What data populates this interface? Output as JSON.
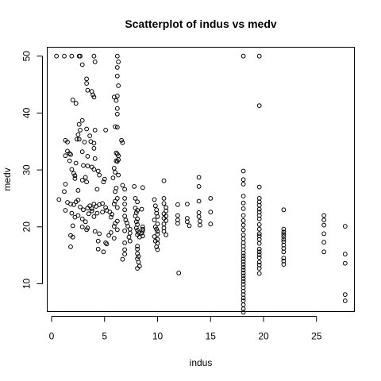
{
  "chart_data": {
    "type": "scatter",
    "title": "Scatterplot of indus vs medv",
    "xlabel": "indus",
    "ylabel": "medv",
    "xlim": [
      0,
      28
    ],
    "ylim": [
      5,
      50
    ],
    "xticks": [
      0,
      5,
      10,
      15,
      20,
      25
    ],
    "yticks": [
      10,
      20,
      30,
      40,
      50
    ],
    "grid": false,
    "marker": "open-circle",
    "points": [
      [
        0.46,
        50.0
      ],
      [
        1.2,
        50.0
      ],
      [
        1.9,
        50.0
      ],
      [
        2.6,
        50.0
      ],
      [
        2.7,
        50.0
      ],
      [
        4.0,
        50.0
      ],
      [
        4.1,
        49.0
      ],
      [
        6.2,
        50.0
      ],
      [
        6.3,
        49.0
      ],
      [
        6.2,
        48.0
      ],
      [
        6.2,
        46.5
      ],
      [
        6.3,
        44.8
      ],
      [
        6.2,
        43.0
      ],
      [
        5.9,
        42.8
      ],
      [
        6.1,
        42.2
      ],
      [
        6.2,
        40.8
      ],
      [
        6.2,
        39.8
      ],
      [
        6.0,
        37.6
      ],
      [
        6.2,
        37.5
      ],
      [
        6.6,
        35.2
      ],
      [
        6.7,
        34.8
      ],
      [
        6.1,
        33.0
      ],
      [
        6.2,
        32.8
      ],
      [
        6.3,
        32.5
      ],
      [
        6.3,
        31.8
      ],
      [
        6.2,
        31.5
      ],
      [
        6.1,
        31.6
      ],
      [
        5.9,
        30.3
      ],
      [
        6.0,
        29.6
      ],
      [
        6.3,
        29.1
      ],
      [
        5.8,
        28.6
      ],
      [
        6.7,
        27.3
      ],
      [
        6.1,
        26.8
      ],
      [
        6.0,
        26.2
      ],
      [
        6.2,
        25.0
      ],
      [
        6.0,
        24.5
      ],
      [
        5.9,
        24.0
      ],
      [
        6.2,
        23.4
      ],
      [
        5.5,
        22.6
      ],
      [
        5.7,
        22.2
      ],
      [
        5.6,
        21.7
      ],
      [
        6.2,
        21.0
      ],
      [
        6.0,
        20.6
      ],
      [
        5.9,
        20.1
      ],
      [
        6.2,
        19.5
      ],
      [
        5.6,
        19.0
      ],
      [
        5.4,
        18.5
      ],
      [
        5.9,
        18.0
      ],
      [
        2.9,
        48.5
      ],
      [
        3.3,
        46.0
      ],
      [
        3.3,
        45.2
      ],
      [
        3.4,
        44.0
      ],
      [
        3.8,
        43.8
      ],
      [
        3.9,
        43.2
      ],
      [
        4.0,
        42.8
      ],
      [
        2.0,
        42.3
      ],
      [
        2.3,
        41.7
      ],
      [
        2.9,
        38.7
      ],
      [
        2.6,
        38.0
      ],
      [
        2.7,
        37.0
      ],
      [
        3.3,
        37.2
      ],
      [
        5.1,
        37.0
      ],
      [
        4.1,
        37.0
      ],
      [
        2.5,
        36.2
      ],
      [
        3.6,
        36.0
      ],
      [
        2.4,
        35.4
      ],
      [
        1.3,
        35.2
      ],
      [
        1.5,
        34.9
      ],
      [
        2.6,
        35.4
      ],
      [
        3.7,
        35.0
      ],
      [
        4.0,
        34.7
      ],
      [
        3.1,
        34.9
      ],
      [
        4.0,
        33.8
      ],
      [
        1.5,
        33.3
      ],
      [
        1.7,
        32.9
      ],
      [
        1.8,
        32.7
      ],
      [
        1.3,
        32.5
      ],
      [
        2.9,
        33.2
      ],
      [
        3.4,
        32.4
      ],
      [
        4.1,
        32.0
      ],
      [
        1.7,
        31.6
      ],
      [
        2.3,
        31.2
      ],
      [
        3.0,
        30.8
      ],
      [
        3.4,
        30.7
      ],
      [
        3.8,
        30.5
      ],
      [
        4.0,
        30.1
      ],
      [
        4.4,
        29.8
      ],
      [
        4.5,
        29.1
      ],
      [
        1.9,
        30.1
      ],
      [
        2.1,
        29.4
      ],
      [
        2.2,
        29.0
      ],
      [
        2.2,
        28.5
      ],
      [
        2.9,
        28.2
      ],
      [
        3.3,
        27.9
      ],
      [
        4.9,
        27.9
      ],
      [
        5.0,
        28.4
      ],
      [
        1.3,
        27.5
      ],
      [
        3.2,
        28.7
      ],
      [
        4.3,
        26.6
      ],
      [
        2.5,
        26.4
      ],
      [
        1.2,
        26.2
      ],
      [
        0.7,
        24.8
      ],
      [
        1.5,
        24.3
      ],
      [
        1.8,
        24.0
      ],
      [
        2.1,
        23.9
      ],
      [
        2.3,
        24.4
      ],
      [
        2.5,
        24.7
      ],
      [
        2.7,
        23.5
      ],
      [
        3.0,
        23.0
      ],
      [
        3.4,
        23.3
      ],
      [
        3.6,
        23.7
      ],
      [
        3.8,
        23.2
      ],
      [
        4.0,
        24.0
      ],
      [
        4.2,
        23.6
      ],
      [
        4.5,
        23.9
      ],
      [
        4.8,
        24.1
      ],
      [
        5.1,
        23.4
      ],
      [
        5.2,
        22.9
      ],
      [
        1.9,
        22.4
      ],
      [
        2.2,
        21.7
      ],
      [
        2.5,
        22.0
      ],
      [
        2.9,
        21.4
      ],
      [
        3.2,
        20.9
      ],
      [
        3.5,
        22.3
      ],
      [
        3.8,
        22.8
      ],
      [
        4.0,
        21.8
      ],
      [
        4.3,
        22.4
      ],
      [
        4.8,
        22.6
      ],
      [
        1.3,
        22.9
      ],
      [
        2.0,
        20.2
      ],
      [
        2.9,
        20.0
      ],
      [
        3.3,
        19.5
      ],
      [
        3.4,
        19.8
      ],
      [
        4.1,
        19.2
      ],
      [
        4.5,
        18.8
      ],
      [
        1.8,
        18.5
      ],
      [
        2.0,
        18.2
      ],
      [
        4.4,
        17.5
      ],
      [
        5.1,
        17.2
      ],
      [
        5.2,
        17.0
      ],
      [
        1.8,
        16.5
      ],
      [
        4.4,
        16.1
      ],
      [
        4.9,
        15.6
      ],
      [
        6.9,
        26.6
      ],
      [
        6.9,
        25.0
      ],
      [
        6.9,
        24.0
      ],
      [
        6.9,
        23.0
      ],
      [
        6.9,
        21.9
      ],
      [
        7.0,
        21.2
      ],
      [
        7.1,
        20.7
      ],
      [
        7.2,
        20.1
      ],
      [
        7.4,
        19.6
      ],
      [
        7.4,
        18.9
      ],
      [
        6.9,
        19.3
      ],
      [
        7.3,
        18.2
      ],
      [
        7.4,
        17.5
      ],
      [
        6.9,
        17.2
      ],
      [
        6.9,
        16.0
      ],
      [
        6.9,
        15.2
      ],
      [
        6.7,
        14.3
      ],
      [
        7.8,
        27.1
      ],
      [
        7.9,
        25.0
      ],
      [
        8.1,
        24.4
      ],
      [
        7.9,
        23.3
      ],
      [
        8.1,
        22.9
      ],
      [
        8.0,
        22.5
      ],
      [
        7.9,
        21.9
      ],
      [
        8.1,
        21.4
      ],
      [
        8.0,
        20.9
      ],
      [
        8.1,
        20.4
      ],
      [
        8.0,
        19.8
      ],
      [
        8.1,
        19.4
      ],
      [
        8.2,
        19.0
      ],
      [
        8.1,
        18.6
      ],
      [
        8.3,
        18.2
      ],
      [
        8.6,
        20.0
      ],
      [
        8.6,
        19.6
      ],
      [
        8.6,
        19.3
      ],
      [
        8.5,
        18.9
      ],
      [
        8.6,
        18.4
      ],
      [
        8.5,
        23.1
      ],
      [
        8.6,
        26.9
      ],
      [
        8.1,
        16.6
      ],
      [
        8.1,
        16.1
      ],
      [
        8.1,
        15.3
      ],
      [
        8.2,
        14.8
      ],
      [
        8.1,
        14.4
      ],
      [
        8.2,
        13.8
      ],
      [
        8.3,
        13.1
      ],
      [
        8.1,
        12.7
      ],
      [
        9.7,
        24.8
      ],
      [
        9.8,
        23.7
      ],
      [
        9.9,
        23.0
      ],
      [
        9.9,
        22.4
      ],
      [
        10.0,
        21.8
      ],
      [
        9.7,
        21.2
      ],
      [
        10.0,
        20.5
      ],
      [
        9.8,
        20.0
      ],
      [
        9.9,
        19.6
      ],
      [
        10.0,
        19.2
      ],
      [
        10.0,
        18.7
      ],
      [
        9.7,
        18.3
      ],
      [
        10.0,
        17.8
      ],
      [
        9.8,
        17.5
      ],
      [
        10.0,
        17.1
      ],
      [
        9.9,
        16.5
      ],
      [
        10.0,
        16.0
      ],
      [
        10.6,
        28.1
      ],
      [
        10.6,
        25.0
      ],
      [
        10.6,
        24.1
      ],
      [
        10.8,
        23.4
      ],
      [
        10.8,
        22.8
      ],
      [
        10.6,
        22.3
      ],
      [
        10.8,
        21.9
      ],
      [
        10.6,
        21.5
      ],
      [
        10.8,
        21.1
      ],
      [
        10.6,
        20.5
      ],
      [
        10.6,
        19.8
      ],
      [
        10.6,
        19.2
      ],
      [
        10.8,
        18.6
      ],
      [
        11.9,
        23.9
      ],
      [
        11.9,
        22.0
      ],
      [
        11.9,
        21.2
      ],
      [
        11.9,
        20.6
      ],
      [
        12.0,
        11.9
      ],
      [
        12.8,
        24.0
      ],
      [
        12.8,
        21.5
      ],
      [
        12.8,
        20.9
      ],
      [
        13.0,
        20.2
      ],
      [
        13.9,
        28.7
      ],
      [
        13.9,
        27.1
      ],
      [
        13.9,
        24.5
      ],
      [
        13.9,
        22.5
      ],
      [
        13.9,
        21.8
      ],
      [
        14.0,
        21.0
      ],
      [
        14.0,
        20.3
      ],
      [
        15.0,
        25.0
      ],
      [
        15.0,
        22.6
      ],
      [
        15.0,
        20.5
      ],
      [
        18.1,
        50.0
      ],
      [
        18.1,
        29.8
      ],
      [
        18.1,
        28.3
      ],
      [
        18.1,
        27.5
      ],
      [
        18.1,
        25.4
      ],
      [
        18.1,
        24.2
      ],
      [
        18.1,
        23.2
      ],
      [
        18.1,
        22.0
      ],
      [
        18.1,
        21.1
      ],
      [
        18.1,
        20.3
      ],
      [
        18.1,
        19.5
      ],
      [
        18.1,
        18.6
      ],
      [
        18.1,
        17.9
      ],
      [
        18.1,
        17.2
      ],
      [
        18.1,
        16.6
      ],
      [
        18.1,
        16.0
      ],
      [
        18.1,
        15.4
      ],
      [
        18.1,
        14.9
      ],
      [
        18.1,
        14.4
      ],
      [
        18.1,
        13.9
      ],
      [
        18.1,
        13.4
      ],
      [
        18.1,
        12.9
      ],
      [
        18.1,
        12.4
      ],
      [
        18.1,
        11.9
      ],
      [
        18.1,
        11.4
      ],
      [
        18.1,
        10.9
      ],
      [
        18.1,
        10.4
      ],
      [
        18.1,
        9.9
      ],
      [
        18.1,
        9.3
      ],
      [
        18.1,
        8.7
      ],
      [
        18.1,
        8.1
      ],
      [
        18.1,
        7.5
      ],
      [
        18.1,
        7.0
      ],
      [
        18.1,
        6.3
      ],
      [
        18.1,
        5.6
      ],
      [
        18.1,
        5.0
      ],
      [
        19.6,
        50.0
      ],
      [
        19.6,
        41.3
      ],
      [
        19.6,
        27.0
      ],
      [
        19.6,
        25.0
      ],
      [
        19.6,
        24.4
      ],
      [
        19.6,
        23.8
      ],
      [
        19.6,
        23.1
      ],
      [
        19.6,
        22.6
      ],
      [
        19.6,
        22.0
      ],
      [
        19.6,
        21.4
      ],
      [
        19.6,
        20.4
      ],
      [
        19.6,
        19.6
      ],
      [
        19.6,
        18.8
      ],
      [
        19.6,
        18.4
      ],
      [
        19.6,
        17.8
      ],
      [
        19.6,
        17.1
      ],
      [
        19.6,
        16.1
      ],
      [
        19.6,
        15.6
      ],
      [
        19.6,
        15.1
      ],
      [
        19.6,
        14.6
      ],
      [
        19.6,
        13.8
      ],
      [
        19.6,
        13.3
      ],
      [
        19.6,
        12.7
      ],
      [
        19.6,
        11.8
      ],
      [
        21.9,
        23.0
      ],
      [
        21.9,
        19.6
      ],
      [
        21.9,
        19.1
      ],
      [
        21.9,
        18.7
      ],
      [
        21.9,
        18.3
      ],
      [
        21.9,
        17.8
      ],
      [
        21.9,
        17.4
      ],
      [
        21.9,
        16.8
      ],
      [
        21.9,
        16.2
      ],
      [
        21.9,
        15.6
      ],
      [
        21.9,
        14.5
      ],
      [
        21.9,
        14.0
      ],
      [
        21.9,
        13.4
      ],
      [
        25.7,
        22.0
      ],
      [
        25.7,
        21.2
      ],
      [
        25.7,
        20.3
      ],
      [
        25.7,
        18.8
      ],
      [
        25.7,
        17.3
      ],
      [
        25.7,
        15.6
      ],
      [
        27.7,
        20.1
      ],
      [
        27.7,
        15.2
      ],
      [
        27.7,
        13.6
      ],
      [
        27.7,
        8.1
      ],
      [
        27.7,
        7.0
      ]
    ]
  }
}
